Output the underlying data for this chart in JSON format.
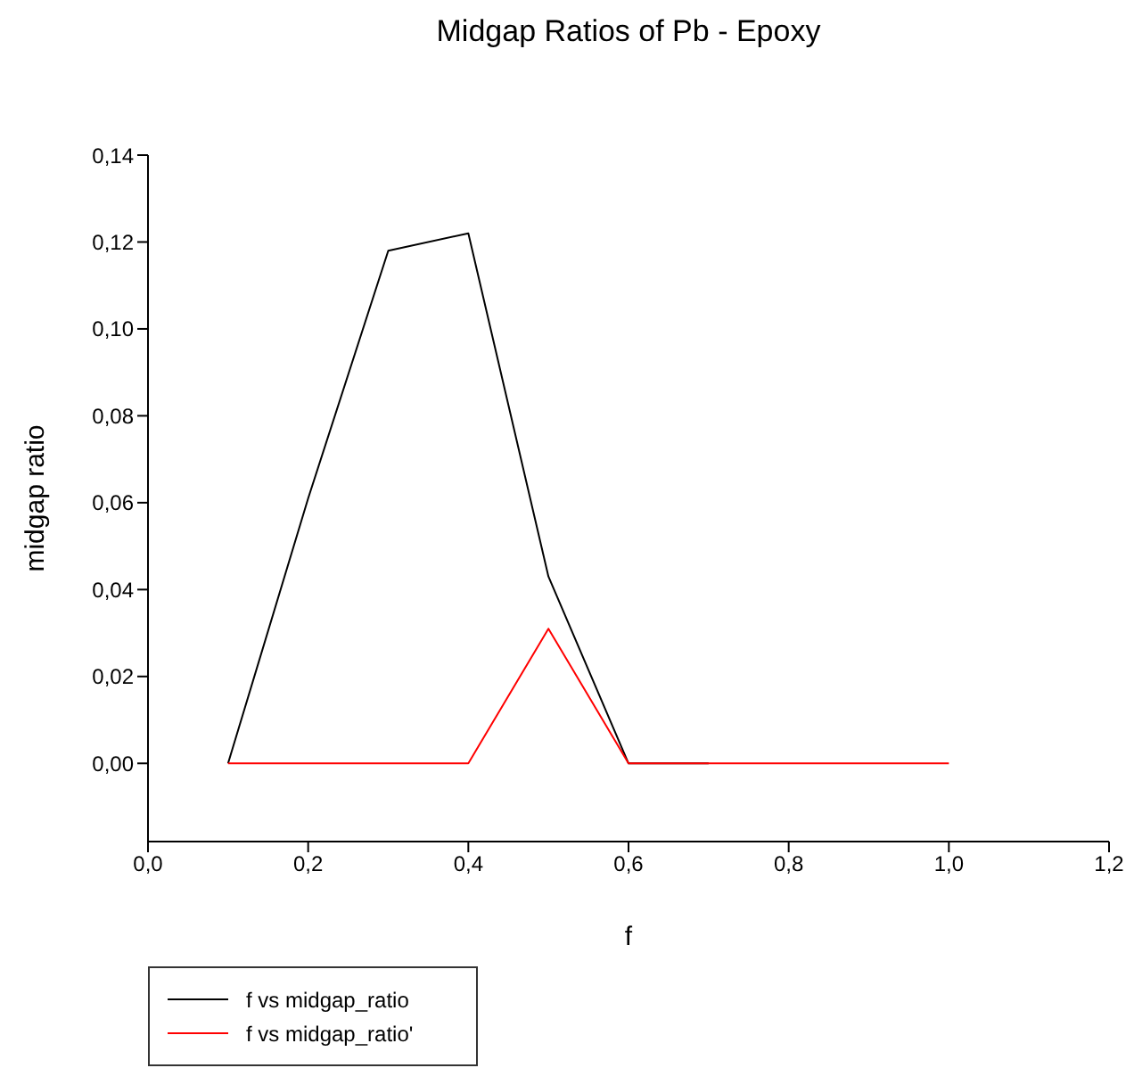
{
  "chart_data": {
    "type": "line",
    "title": "Midgap Ratios of Pb - Epoxy",
    "xlabel": "f",
    "ylabel": "midgap ratio",
    "x": [
      0.1,
      0.2,
      0.3,
      0.4,
      0.5,
      0.6,
      0.7,
      0.8,
      0.9,
      1.0
    ],
    "series": [
      {
        "name": "f vs midgap_ratio",
        "color": "#000000",
        "values": [
          0,
          0.061,
          0.118,
          0.122,
          0.043,
          0,
          0,
          null,
          null,
          null
        ]
      },
      {
        "name": "f vs midgap_ratio'",
        "color": "#ff0000",
        "values": [
          0,
          0,
          0,
          0,
          0.031,
          0,
          0,
          0,
          0,
          0
        ]
      }
    ],
    "xlim": [
      0,
      1.2
    ],
    "xticks": [
      {
        "value": 0,
        "label": "0,0"
      },
      {
        "value": 0.2,
        "label": "0,2"
      },
      {
        "value": 0.4,
        "label": "0,4"
      },
      {
        "value": 0.6,
        "label": "0,6"
      },
      {
        "value": 0.8,
        "label": "0,8"
      },
      {
        "value": 1.0,
        "label": "1,0"
      },
      {
        "value": 1.2,
        "label": "1,2"
      }
    ],
    "ylim": [
      -0.018,
      0.14
    ],
    "yticks": [
      {
        "value": 0,
        "label": "0,00"
      },
      {
        "value": 0.02,
        "label": "0,02"
      },
      {
        "value": 0.04,
        "label": "0,04"
      },
      {
        "value": 0.06,
        "label": "0,06"
      },
      {
        "value": 0.08,
        "label": "0,08"
      },
      {
        "value": 0.1,
        "label": "0,10"
      },
      {
        "value": 0.12,
        "label": "0,12"
      },
      {
        "value": 0.14,
        "label": "0,14"
      }
    ],
    "legend": "bottom left",
    "marker": "none",
    "line_style": "solid",
    "grid": false
  }
}
